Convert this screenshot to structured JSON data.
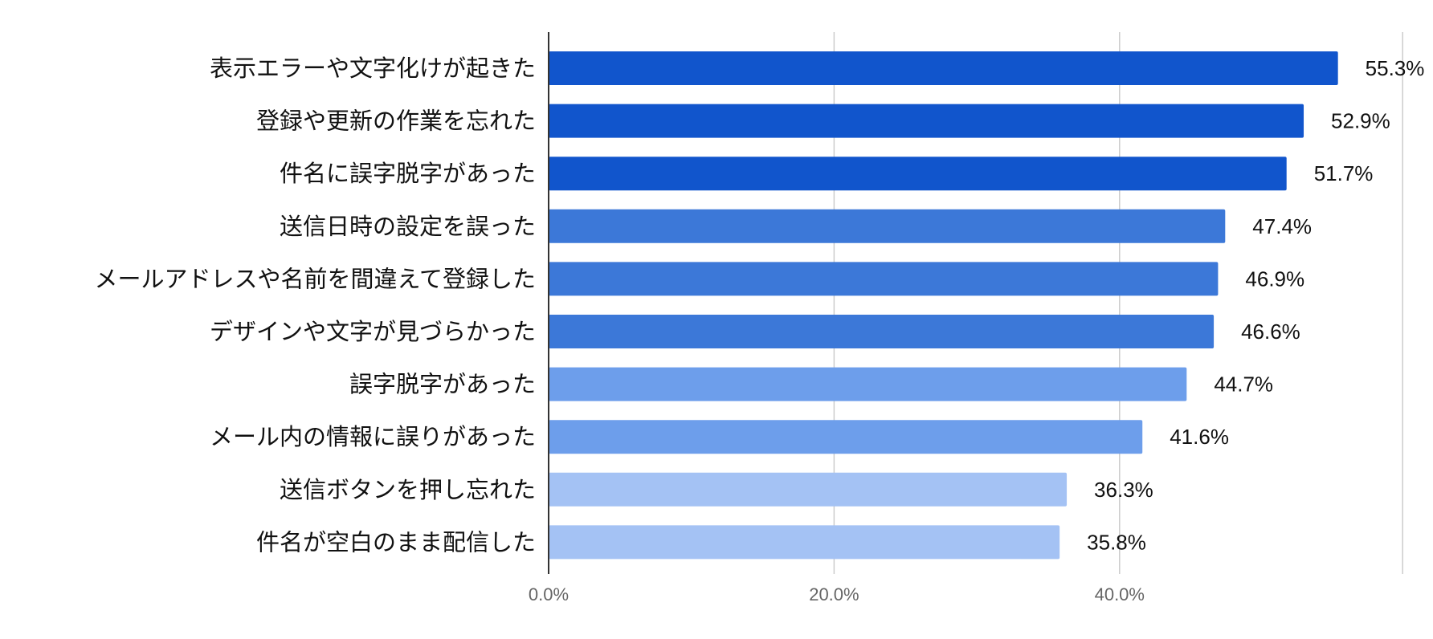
{
  "chart_data": {
    "type": "bar",
    "orientation": "horizontal",
    "categories": [
      "表示エラーや文字化けが起きた",
      "登録や更新の作業を忘れた",
      "件名に誤字脱字があった",
      "送信日時の設定を誤った",
      "メールアドレスや名前を間違えて登録した",
      "デザインや文字が見づらかった",
      "誤字脱字があった",
      "メール内の情報に誤りがあった",
      "送信ボタンを押し忘れた",
      "件名が空白のまま配信した"
    ],
    "values": [
      55.3,
      52.9,
      51.7,
      47.4,
      46.9,
      46.6,
      44.7,
      41.6,
      36.3,
      35.8
    ],
    "value_labels": [
      "55.3%",
      "52.9%",
      "51.7%",
      "47.4%",
      "46.9%",
      "46.6%",
      "44.7%",
      "41.6%",
      "36.3%",
      "35.8%"
    ],
    "bar_colors": [
      "#1155cc",
      "#1155cc",
      "#1155cc",
      "#3c78d8",
      "#3c78d8",
      "#3c78d8",
      "#6d9eeb",
      "#6d9eeb",
      "#a4c2f4",
      "#a4c2f4"
    ],
    "x_ticks": [
      {
        "value": 0,
        "label": "0.0%"
      },
      {
        "value": 20,
        "label": "20.0%"
      },
      {
        "value": 40,
        "label": "40.0%"
      }
    ],
    "xlim": [
      0,
      60
    ],
    "grid": true,
    "gridline_color": "#cccccc",
    "axis_color": "#333333",
    "title": "",
    "xlabel": "",
    "ylabel": ""
  }
}
